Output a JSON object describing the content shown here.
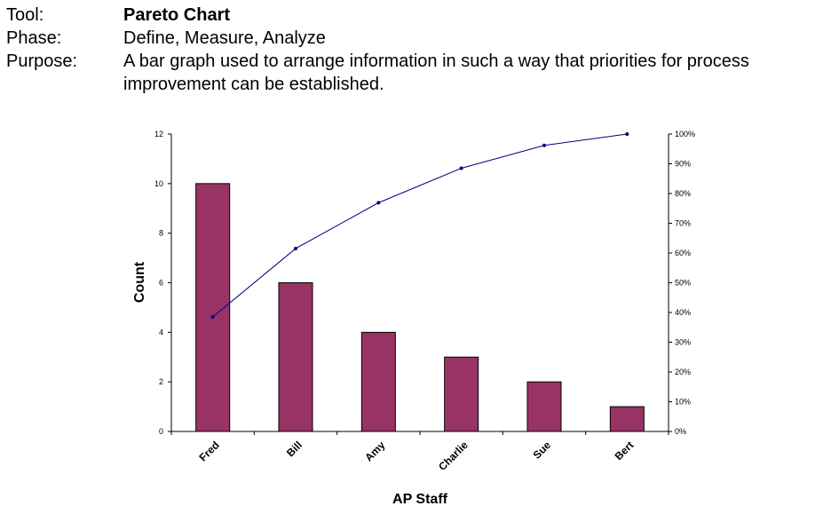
{
  "header": {
    "tool_label": "Tool:",
    "tool_value": "Pareto Chart",
    "phase_label": "Phase:",
    "phase_value": "Define, Measure, Analyze",
    "purpose_label": "Purpose:",
    "purpose_line1": "A bar graph used to arrange information in such a way that priorities for process",
    "purpose_line2": "improvement can be established."
  },
  "chart_data": {
    "type": "bar",
    "title": "",
    "xlabel": "AP Staff",
    "ylabel": "Count",
    "categories": [
      "Fred",
      "Bill",
      "Amy",
      "Charlie",
      "Sue",
      "Bert"
    ],
    "values": [
      10,
      6,
      4,
      3,
      2,
      1
    ],
    "cumulative_percent": [
      38.5,
      61.5,
      76.9,
      88.5,
      96.2,
      100
    ],
    "ylim": [
      0,
      12
    ],
    "y_ticks": [
      "0",
      "2",
      "4",
      "6",
      "8",
      "10",
      "12"
    ],
    "y2lim": [
      0,
      100
    ],
    "y2_ticks": [
      "0%",
      "10%",
      "20%",
      "30%",
      "40%",
      "50%",
      "60%",
      "70%",
      "80%",
      "90%",
      "100%"
    ],
    "grid": false,
    "legend": "none",
    "bar_color": "#993366",
    "line_color": "#000080"
  }
}
